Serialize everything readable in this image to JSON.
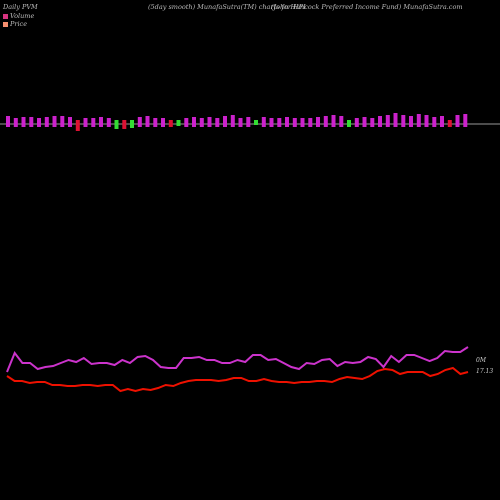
{
  "header": {
    "left": "Daily PVM",
    "center": "(5day smooth) MunafaSutra(TM) charts for HPI",
    "right": "(John  Hancock Preferred Income   Fund) MunafaSutra.com"
  },
  "legend": [
    {
      "label": "Volume",
      "color": "#d6337f"
    },
    {
      "label": "Price",
      "color": "#f58f6f"
    }
  ],
  "labels": {
    "volume_value": "0M",
    "price_value": "17.13"
  },
  "colors": {
    "up_bar": "#cc22cc",
    "down_bar": "#33dd33",
    "red_bar": "#dd1133",
    "volume_line": "#cc33cc",
    "price_line": "#ee1100",
    "baseline": "#999999"
  },
  "chart_data": [
    {
      "type": "bar",
      "series": [
        {
          "up": [
            1,
            1,
            1,
            1,
            1,
            1,
            1,
            1,
            1,
            -1,
            1,
            1,
            1,
            1,
            -1,
            -1,
            -1,
            1,
            1,
            1,
            1,
            -1,
            -1,
            1,
            1,
            1,
            1,
            1,
            1,
            1,
            1,
            1,
            -1,
            1,
            1,
            1,
            1,
            1,
            1,
            1,
            1,
            1,
            1,
            1,
            -1,
            1,
            1,
            1,
            1,
            1,
            1,
            1,
            1,
            1,
            1,
            1,
            1,
            -1,
            1,
            1
          ],
          "mag": [
            8,
            6,
            7,
            7,
            6,
            7,
            8,
            8,
            7,
            11,
            6,
            6,
            7,
            6,
            9,
            9,
            8,
            7,
            8,
            6,
            6,
            7,
            6,
            6,
            7,
            6,
            7,
            6,
            8,
            9,
            6,
            7,
            5,
            7,
            6,
            6,
            7,
            6,
            6,
            6,
            7,
            8,
            9,
            8,
            7,
            6,
            7,
            6,
            8,
            9,
            11,
            9,
            8,
            10,
            9,
            7,
            8,
            7,
            9,
            10
          ]
        }
      ]
    },
    {
      "type": "line",
      "series": [
        {
          "values": [
            372,
            353,
            363,
            363,
            369,
            367,
            366,
            363,
            360,
            362,
            358,
            364,
            363,
            363,
            365,
            360,
            363,
            357,
            356,
            360,
            367,
            368,
            368,
            358,
            358,
            357,
            360,
            360,
            363,
            363,
            360,
            362,
            355,
            355,
            360,
            359,
            363,
            367,
            369,
            363,
            364,
            360,
            359,
            366,
            362,
            363,
            362,
            357,
            359,
            367,
            356,
            362,
            355,
            355,
            358,
            361,
            358,
            351,
            352,
            352,
            347
          ]
        },
        {
          "values": [
            376,
            381,
            381,
            383,
            382,
            382,
            385,
            385,
            386,
            386,
            385,
            385,
            386,
            385,
            385,
            391,
            389,
            391,
            389,
            390,
            388,
            385,
            386,
            383,
            381,
            380,
            380,
            380,
            381,
            380,
            378,
            378,
            381,
            381,
            379,
            381,
            382,
            382,
            383,
            382,
            382,
            381,
            381,
            382,
            379,
            377,
            378,
            379,
            376,
            371,
            369,
            370,
            374,
            372,
            372,
            372,
            376,
            374,
            370,
            368,
            374,
            372
          ]
        }
      ]
    }
  ]
}
